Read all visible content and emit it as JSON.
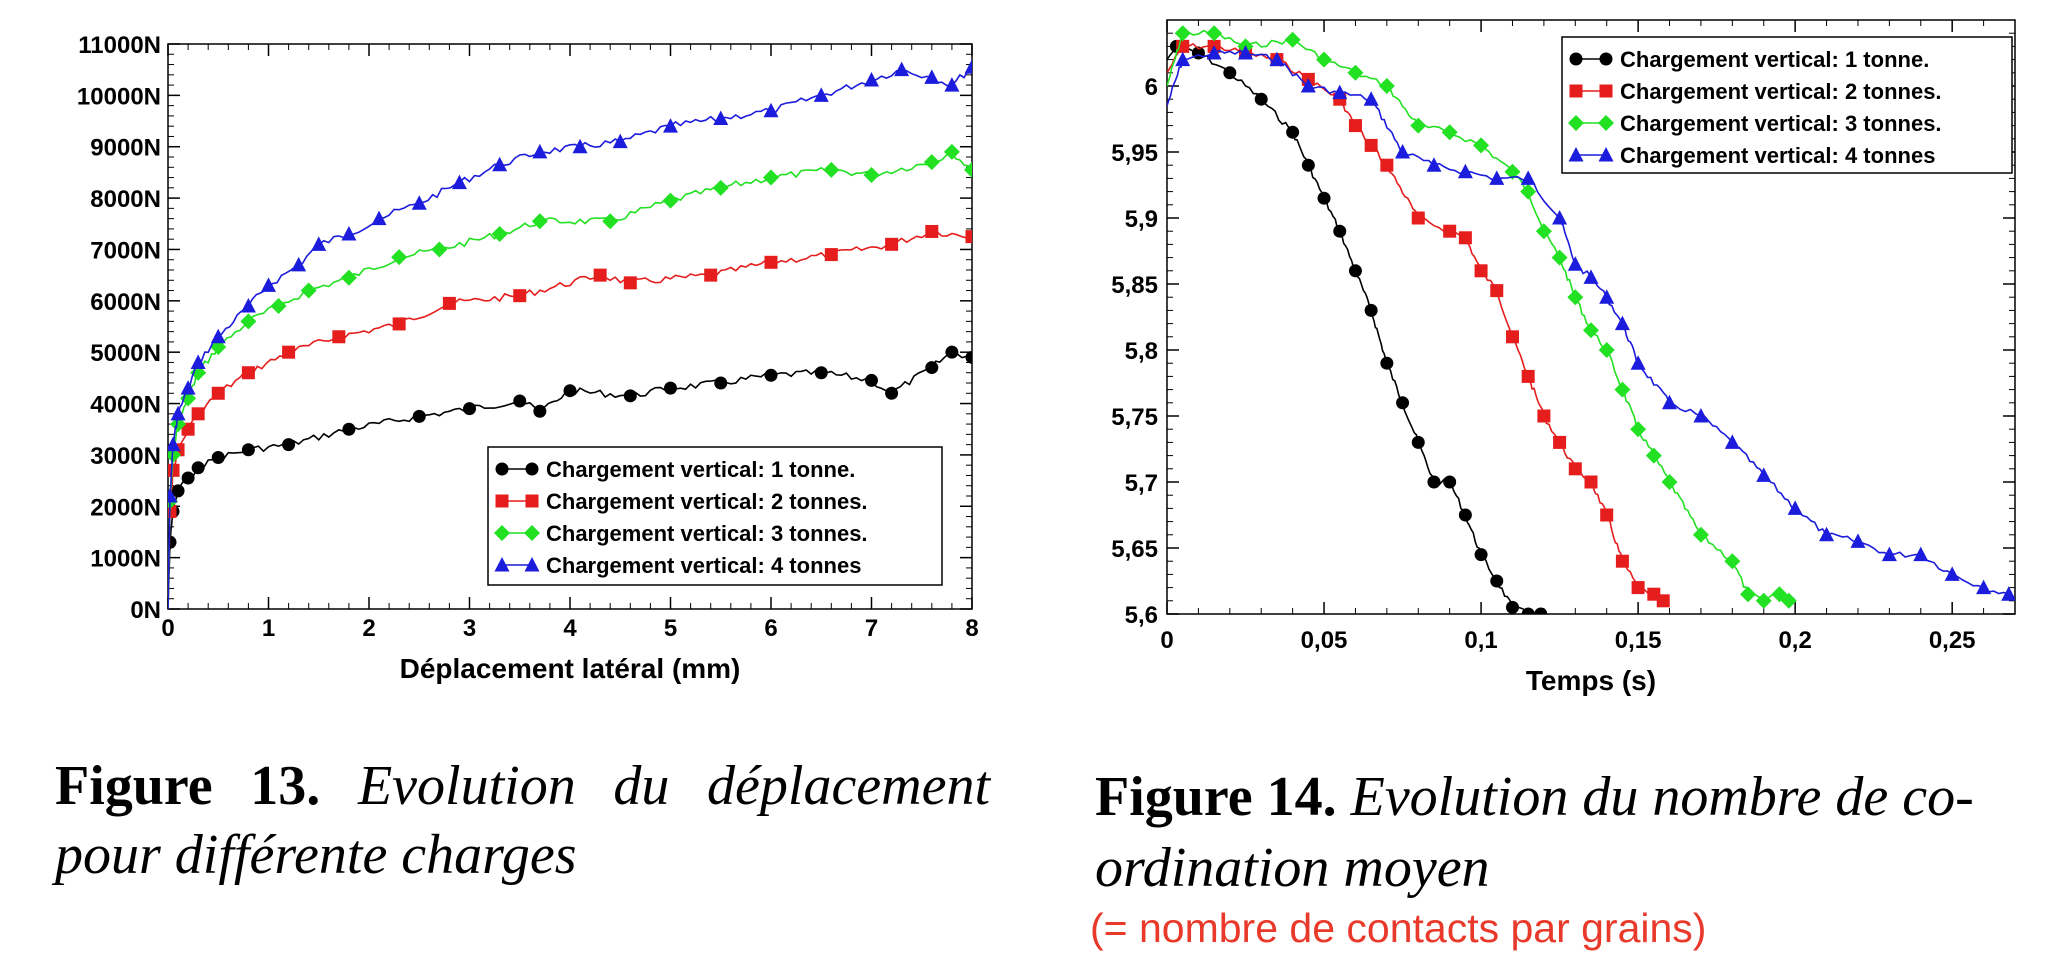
{
  "chart_data": [
    {
      "type": "line",
      "xlabel": "Déplacement latéral (mm)",
      "ylabel": "",
      "xlim": [
        0,
        8
      ],
      "ylim": [
        0,
        11000
      ],
      "xticks": [
        "0",
        "1",
        "2",
        "3",
        "4",
        "5",
        "6",
        "7",
        "8"
      ],
      "yticks": [
        "0N",
        "1000N",
        "2000N",
        "3000N",
        "4000N",
        "5000N",
        "6000N",
        "7000N",
        "8000N",
        "9000N",
        "10000N",
        "11000N"
      ],
      "grid": false,
      "legend_position": "bottom-right",
      "series": [
        {
          "name": "Chargement vertical: 1 tonne.",
          "color": "#000000",
          "marker": "circle",
          "x": [
            0,
            0.02,
            0.05,
            0.1,
            0.2,
            0.3,
            0.5,
            0.8,
            1.2,
            1.8,
            2.5,
            3.0,
            3.5,
            3.7,
            4.0,
            4.6,
            5.0,
            5.5,
            6.0,
            6.5,
            7.0,
            7.2,
            7.6,
            7.8,
            8.0
          ],
          "y": [
            0,
            1300,
            1900,
            2300,
            2550,
            2750,
            2950,
            3100,
            3200,
            3500,
            3750,
            3900,
            4050,
            3850,
            4250,
            4150,
            4300,
            4400,
            4550,
            4600,
            4450,
            4200,
            4700,
            5000,
            4900
          ]
        },
        {
          "name": "Chargement vertical: 2 tonnes.",
          "color": "#e51d1d",
          "marker": "square",
          "x": [
            0,
            0.02,
            0.05,
            0.1,
            0.2,
            0.3,
            0.5,
            0.8,
            1.2,
            1.7,
            2.3,
            2.8,
            3.5,
            4.3,
            4.6,
            5.4,
            6.0,
            6.6,
            7.2,
            7.6,
            8.0
          ],
          "y": [
            0,
            1900,
            2700,
            3100,
            3500,
            3800,
            4200,
            4600,
            5000,
            5300,
            5550,
            5950,
            6100,
            6500,
            6350,
            6500,
            6750,
            6900,
            7100,
            7350,
            7250
          ]
        },
        {
          "name": "Chargement vertical: 3 tonnes.",
          "color": "#22e022",
          "marker": "diamond",
          "x": [
            0,
            0.02,
            0.05,
            0.1,
            0.2,
            0.3,
            0.5,
            0.8,
            1.1,
            1.4,
            1.8,
            2.3,
            2.7,
            3.3,
            3.7,
            4.4,
            5.0,
            5.5,
            6.0,
            6.6,
            7.0,
            7.6,
            7.8,
            8.0
          ],
          "y": [
            0,
            2100,
            3000,
            3600,
            4100,
            4600,
            5100,
            5600,
            5900,
            6200,
            6450,
            6850,
            7000,
            7300,
            7550,
            7550,
            7950,
            8200,
            8400,
            8550,
            8450,
            8700,
            8900,
            8550
          ]
        },
        {
          "name": "Chargement vertical: 4 tonnes",
          "color": "#1c1cdc",
          "marker": "triangle",
          "x": [
            0,
            0.02,
            0.05,
            0.1,
            0.2,
            0.3,
            0.5,
            0.8,
            1.0,
            1.3,
            1.5,
            1.8,
            2.1,
            2.5,
            2.9,
            3.3,
            3.7,
            4.1,
            4.5,
            5.0,
            5.5,
            6.0,
            6.5,
            7.0,
            7.3,
            7.6,
            7.8,
            8.0
          ],
          "y": [
            0,
            2200,
            3200,
            3800,
            4300,
            4800,
            5300,
            5900,
            6300,
            6700,
            7100,
            7300,
            7600,
            7900,
            8300,
            8650,
            8900,
            9000,
            9100,
            9400,
            9550,
            9700,
            10000,
            10300,
            10500,
            10350,
            10200,
            10550
          ]
        }
      ],
      "legend": [
        "Chargement vertical: 1 tonne.",
        "Chargement vertical: 2 tonnes.",
        "Chargement vertical: 3 tonnes.",
        "Chargement vertical: 4 tonnes"
      ]
    },
    {
      "type": "line",
      "xlabel": "Temps (s)",
      "ylabel": "",
      "xlim": [
        0,
        0.27
      ],
      "ylim": [
        5.6,
        6.05
      ],
      "xticks": [
        "0",
        "0,05",
        "0,1",
        "0,15",
        "0,2",
        "0,25"
      ],
      "yticks": [
        "5,6",
        "5,65",
        "5,7",
        "5,75",
        "5,8",
        "5,85",
        "5,9",
        "5,95",
        "6"
      ],
      "grid": false,
      "legend_position": "top-right",
      "series": [
        {
          "name": "Chargement vertical: 1 tonne.",
          "color": "#000000",
          "marker": "circle",
          "x": [
            0,
            0.003,
            0.01,
            0.02,
            0.03,
            0.04,
            0.045,
            0.05,
            0.055,
            0.06,
            0.065,
            0.07,
            0.075,
            0.08,
            0.085,
            0.09,
            0.095,
            0.1,
            0.105,
            0.11,
            0.115,
            0.119
          ],
          "y": [
            6.02,
            6.03,
            6.025,
            6.01,
            5.99,
            5.965,
            5.94,
            5.915,
            5.89,
            5.86,
            5.83,
            5.79,
            5.76,
            5.73,
            5.7,
            5.7,
            5.675,
            5.645,
            5.625,
            5.605,
            5.6,
            5.6
          ]
        },
        {
          "name": "Chargement vertical: 2 tonnes.",
          "color": "#e51d1d",
          "marker": "square",
          "x": [
            0,
            0.005,
            0.015,
            0.025,
            0.035,
            0.045,
            0.055,
            0.06,
            0.065,
            0.07,
            0.08,
            0.09,
            0.095,
            0.1,
            0.105,
            0.11,
            0.115,
            0.12,
            0.125,
            0.13,
            0.135,
            0.14,
            0.145,
            0.15,
            0.155,
            0.158
          ],
          "y": [
            6.01,
            6.03,
            6.03,
            6.025,
            6.02,
            6.005,
            5.99,
            5.97,
            5.955,
            5.94,
            5.9,
            5.89,
            5.885,
            5.86,
            5.845,
            5.81,
            5.78,
            5.75,
            5.73,
            5.71,
            5.7,
            5.675,
            5.64,
            5.62,
            5.615,
            5.61
          ]
        },
        {
          "name": "Chargement vertical: 3 tonnes.",
          "color": "#22e022",
          "marker": "diamond",
          "x": [
            0,
            0.005,
            0.015,
            0.025,
            0.04,
            0.05,
            0.06,
            0.07,
            0.08,
            0.09,
            0.1,
            0.11,
            0.115,
            0.12,
            0.125,
            0.13,
            0.135,
            0.14,
            0.145,
            0.15,
            0.155,
            0.16,
            0.17,
            0.18,
            0.185,
            0.19,
            0.195,
            0.198
          ],
          "y": [
            6.0,
            6.04,
            6.04,
            6.03,
            6.035,
            6.02,
            6.01,
            6.0,
            5.97,
            5.965,
            5.955,
            5.935,
            5.92,
            5.89,
            5.87,
            5.84,
            5.815,
            5.8,
            5.77,
            5.74,
            5.72,
            5.7,
            5.66,
            5.64,
            5.615,
            5.61,
            5.615,
            5.61
          ]
        },
        {
          "name": "Chargement vertical: 4 tonnes",
          "color": "#1c1cdc",
          "marker": "triangle",
          "x": [
            0,
            0.005,
            0.015,
            0.025,
            0.035,
            0.045,
            0.055,
            0.065,
            0.075,
            0.085,
            0.095,
            0.105,
            0.115,
            0.125,
            0.13,
            0.135,
            0.14,
            0.145,
            0.15,
            0.16,
            0.17,
            0.18,
            0.19,
            0.2,
            0.21,
            0.22,
            0.23,
            0.24,
            0.25,
            0.26,
            0.268
          ],
          "y": [
            5.985,
            6.02,
            6.025,
            6.025,
            6.02,
            6.0,
            5.995,
            5.99,
            5.95,
            5.94,
            5.935,
            5.93,
            5.93,
            5.9,
            5.865,
            5.855,
            5.84,
            5.82,
            5.79,
            5.76,
            5.75,
            5.73,
            5.705,
            5.68,
            5.66,
            5.655,
            5.645,
            5.645,
            5.63,
            5.62,
            5.615
          ]
        }
      ],
      "legend": [
        "Chargement vertical: 1 tonne.",
        "Chargement vertical: 2 tonnes.",
        "Chargement vertical: 3 tonnes.",
        "Chargement vertical: 4 tonnes"
      ]
    }
  ],
  "captions": {
    "fig13": {
      "label": "Figure 13.",
      "text": "Evolution du déplacement pour différente charges"
    },
    "fig14": {
      "label": "Figure 14.",
      "text": "Evolution du nombre de co-ordination moyen",
      "note": "(= nombre de contacts par grains)"
    }
  },
  "colors": {
    "note": "#e8392b"
  }
}
